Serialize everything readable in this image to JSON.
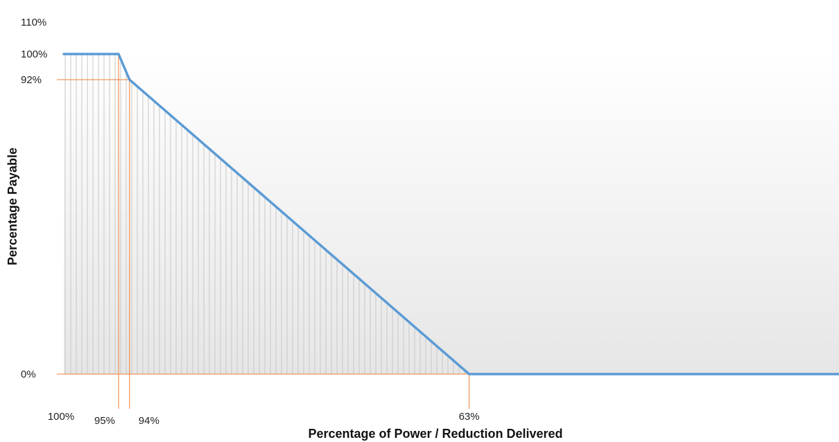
{
  "chart_data": {
    "type": "line",
    "title": "",
    "xlabel": "Percentage of Power / Reduction Delivered",
    "ylabel": "Percentage Payable",
    "x_axis_direction": "descending",
    "y_ticks": [
      {
        "value": 110,
        "label": "110%"
      },
      {
        "value": 100,
        "label": "100%"
      },
      {
        "value": 92,
        "label": "92%"
      },
      {
        "value": 0,
        "label": "0%"
      }
    ],
    "x_ticks": [
      {
        "value": 100,
        "label": "100%"
      },
      {
        "value": 95,
        "label": "95%"
      },
      {
        "value": 94,
        "label": "94%"
      },
      {
        "value": 63,
        "label": "63%"
      }
    ],
    "series": [
      {
        "points": [
          {
            "x": 100,
            "y": 100
          },
          {
            "x": 95,
            "y": 100
          },
          {
            "x": 94,
            "y": 92
          },
          {
            "x": 63,
            "y": 0
          },
          {
            "x": 26,
            "y": 0
          }
        ]
      }
    ],
    "reference_lines": [
      {
        "orientation": "horizontal",
        "value": 92
      },
      {
        "orientation": "horizontal",
        "value": 0
      },
      {
        "orientation": "vertical",
        "value": 95
      },
      {
        "orientation": "vertical",
        "value": 94
      },
      {
        "orientation": "vertical",
        "value": 63
      }
    ],
    "shaded_area_under_curve": true,
    "grid": false,
    "legend": "none",
    "colors": {
      "line": "#5b9bd5",
      "reference": "#ed7d31",
      "hatch": "#c8c8c8",
      "background_gradient_end": "#e6e6e6"
    }
  }
}
